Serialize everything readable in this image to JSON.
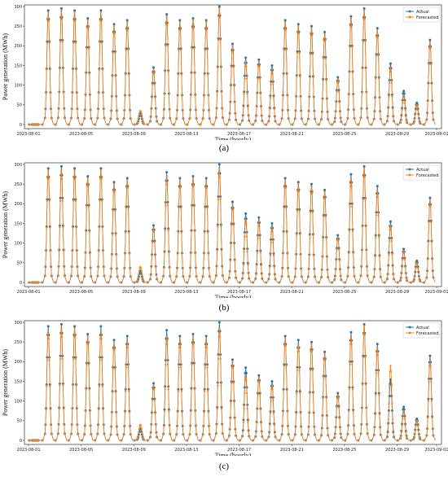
{
  "chart_data": [
    {
      "panel": "(a)",
      "type": "line",
      "xlabel": "Time (hourly)",
      "ylabel": "Power generation (MWh)",
      "ylim": [
        0,
        300
      ],
      "yticks": [
        0,
        50,
        100,
        150,
        200,
        250,
        300
      ],
      "xticks": [
        "2023-08-01",
        "2023-08-05",
        "2023-08-09",
        "2023-08-13",
        "2023-08-17",
        "2023-08-21",
        "2023-08-25",
        "2023-08-29",
        "2023-09-01"
      ],
      "legend": "top-right",
      "series": [
        {
          "name": "Actual",
          "color": "#1f77b4",
          "values": [
            0,
            290,
            295,
            290,
            270,
            290,
            255,
            265,
            30,
            145,
            280,
            265,
            270,
            265,
            300,
            205,
            170,
            165,
            150,
            265,
            255,
            250,
            235,
            120,
            275,
            295,
            245,
            155,
            85,
            55,
            215
          ]
        },
        {
          "name": "Forecasted",
          "color": "#ff7f0e",
          "values": [
            0,
            285,
            290,
            285,
            265,
            285,
            250,
            260,
            35,
            140,
            275,
            260,
            265,
            260,
            295,
            200,
            160,
            160,
            140,
            260,
            250,
            245,
            230,
            115,
            270,
            290,
            240,
            145,
            75,
            50,
            210
          ]
        }
      ]
    },
    {
      "panel": "(b)",
      "type": "line",
      "xlabel": "Time (hourly)",
      "ylabel": "Power generation (MWh)",
      "ylim": [
        0,
        300
      ],
      "yticks": [
        0,
        50,
        100,
        150,
        200,
        250,
        300
      ],
      "xticks": [
        "2023-08-01",
        "2023-08-05",
        "2023-08-09",
        "2023-08-13",
        "2023-08-17",
        "2023-08-21",
        "2023-08-25",
        "2023-08-29",
        "2023-09-01"
      ],
      "legend": "top-right",
      "series": [
        {
          "name": "Actual",
          "color": "#1f77b4",
          "values": [
            0,
            290,
            295,
            290,
            270,
            290,
            255,
            265,
            30,
            145,
            280,
            265,
            270,
            265,
            300,
            205,
            175,
            165,
            150,
            265,
            255,
            250,
            235,
            120,
            275,
            295,
            245,
            155,
            85,
            55,
            215
          ]
        },
        {
          "name": "Forecasted",
          "color": "#ff7f0e",
          "values": [
            0,
            285,
            285,
            285,
            265,
            285,
            250,
            260,
            40,
            140,
            270,
            260,
            265,
            260,
            290,
            200,
            160,
            155,
            140,
            260,
            250,
            245,
            230,
            115,
            265,
            290,
            235,
            145,
            80,
            50,
            210
          ]
        }
      ]
    },
    {
      "panel": "(c)",
      "type": "line",
      "xlabel": "Time (hourly)",
      "ylabel": "Power generation (MWh)",
      "ylim": [
        0,
        300
      ],
      "yticks": [
        0,
        50,
        100,
        150,
        200,
        250,
        300
      ],
      "xticks": [
        "2023-08-01",
        "2023-08-05",
        "2023-08-09",
        "2023-08-13",
        "2023-08-17",
        "2023-08-21",
        "2023-08-25",
        "2023-08-29",
        "2023-09-01"
      ],
      "legend": "top-right",
      "series": [
        {
          "name": "Actual",
          "color": "#1f77b4",
          "values": [
            0,
            290,
            295,
            290,
            270,
            290,
            255,
            265,
            30,
            145,
            280,
            265,
            270,
            265,
            300,
            205,
            185,
            165,
            150,
            265,
            255,
            250,
            225,
            120,
            275,
            295,
            245,
            155,
            85,
            55,
            215
          ]
        },
        {
          "name": "Forecasted",
          "color": "#ff7f0e",
          "values": [
            0,
            280,
            285,
            285,
            265,
            280,
            250,
            255,
            40,
            140,
            265,
            255,
            265,
            255,
            285,
            200,
            165,
            160,
            140,
            260,
            245,
            245,
            220,
            115,
            265,
            290,
            235,
            190,
            75,
            50,
            205
          ]
        }
      ]
    }
  ]
}
